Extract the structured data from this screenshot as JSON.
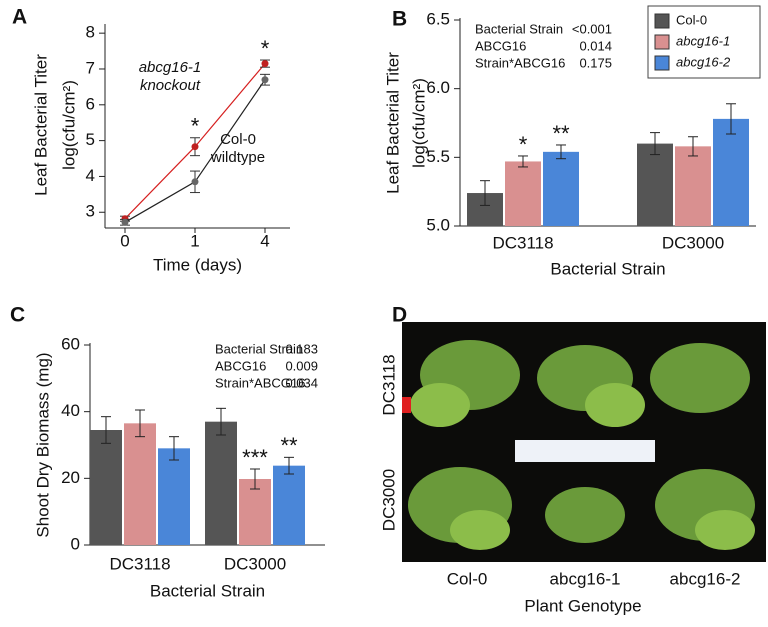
{
  "chart_data": [
    {
      "type": "line",
      "letter": "A",
      "ylabel": [
        "Leaf Bacterial Titer",
        "log(cfu/cm²)"
      ],
      "xlabel": "Time (days)",
      "categories": [
        "0",
        "1",
        "4"
      ],
      "ylim": [
        2.7,
        8.2
      ],
      "yticks": [
        3,
        4,
        5,
        6,
        7,
        8
      ],
      "series": [
        {
          "name": "abcg16-1",
          "note": "knockout",
          "color": "#d62020",
          "values": [
            2.82,
            4.83,
            7.15
          ],
          "errors": [
            0.07,
            0.25,
            0.1
          ],
          "significance": [
            null,
            "*",
            "*"
          ]
        },
        {
          "name": "Col-0",
          "note": "wildtype",
          "color": "#222222",
          "values": [
            2.72,
            3.85,
            6.7
          ],
          "errors": [
            0.08,
            0.3,
            0.15
          ]
        }
      ]
    },
    {
      "type": "bar",
      "letter": "B",
      "ylabel": [
        "Leaf Bacterial Titer",
        "log(cfu/cm²)"
      ],
      "xlabel": "Bacterial Strain",
      "categories": [
        "DC3118",
        "DC3000"
      ],
      "ylim": [
        5.0,
        6.5
      ],
      "yticks": [
        {
          "value": 5.0,
          "label": "5.0"
        },
        {
          "value": 5.5,
          "label": "5.5"
        },
        {
          "value": 6.0,
          "label": "6.0"
        },
        {
          "value": 6.5,
          "label": "6.5"
        }
      ],
      "stats": [
        [
          "Bacterial Strain",
          "<0.001"
        ],
        [
          "ABCG16",
          "0.014"
        ],
        [
          "Strain*ABCG16",
          "0.175"
        ]
      ],
      "series": [
        {
          "name": "Col-0",
          "color": "#555555",
          "values": [
            5.24,
            5.6
          ],
          "errors": [
            0.09,
            0.08
          ]
        },
        {
          "name": "abcg16-1",
          "color": "#d99090",
          "values": [
            5.47,
            5.58
          ],
          "errors": [
            0.04,
            0.07
          ],
          "significance": [
            "*",
            null
          ]
        },
        {
          "name": "abcg16-2",
          "color": "#4a86d8",
          "values": [
            5.54,
            5.78
          ],
          "errors": [
            0.05,
            0.11
          ],
          "significance": [
            "**",
            null
          ]
        }
      ]
    },
    {
      "type": "bar",
      "letter": "C",
      "ylabel": [
        "Shoot Dry Biomass (mg)"
      ],
      "xlabel": "Bacterial Strain",
      "categories": [
        "DC3118",
        "DC3000"
      ],
      "ylim": [
        0,
        60
      ],
      "yticks": [
        0,
        20,
        40,
        60
      ],
      "stats": [
        [
          "Bacterial Strain",
          "0.183"
        ],
        [
          "ABCG16",
          "0.009"
        ],
        [
          "Strain*ABCG16",
          "0.034"
        ]
      ],
      "series": [
        {
          "color": "#555555",
          "values": [
            34.5,
            37
          ],
          "errors": [
            4,
            4
          ]
        },
        {
          "color": "#d99090",
          "values": [
            36.5,
            19.8
          ],
          "errors": [
            4,
            3
          ],
          "significance": [
            null,
            "***"
          ]
        },
        {
          "color": "#4a86d8",
          "values": [
            29,
            23.8
          ],
          "errors": [
            3.5,
            2.5
          ],
          "significance": [
            null,
            "**"
          ]
        }
      ]
    }
  ],
  "photo": {
    "letter": "D",
    "row_labels": [
      "DC3118",
      "DC3000"
    ],
    "column_labels": [
      "Col-0",
      "abcg16-1",
      "abcg16-2"
    ],
    "xlabel": "Plant Genotype"
  }
}
